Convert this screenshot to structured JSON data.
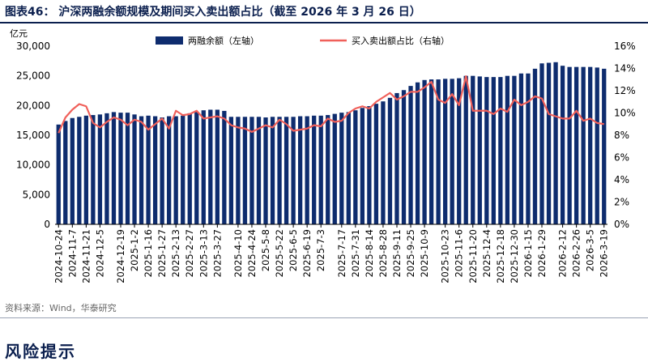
{
  "page": {
    "title": "图表46： 沪深两融余额规模及期间买入卖出额占比（截至 2026 年 3 月 26 日）",
    "source": "资料来源：Wind，华泰研究",
    "section_heading": "风险提示"
  },
  "colors": {
    "bars": "#0e2c6e",
    "line": "#f0605a",
    "title": "#0b1f4e"
  },
  "chart_data": {
    "type": "bar",
    "left_unit": "亿元",
    "left_axis": {
      "ylim": [
        0,
        30000
      ],
      "ticks": [
        "0",
        "5,000",
        "10,000",
        "15,000",
        "20,000",
        "25,000",
        "30,000"
      ]
    },
    "right_axis": {
      "ylim": [
        0,
        16
      ],
      "ticks": [
        "0%",
        "2%",
        "4%",
        "6%",
        "8%",
        "10%",
        "12%",
        "14%",
        "16%"
      ]
    },
    "legend_position": "top",
    "grid": false,
    "x_tick_labels": [
      "2024-10-24",
      "2024-11-7",
      "2024-11-21",
      "2024-12-5",
      "2024-12-19",
      "2025-1-2",
      "2025-1-16",
      "2025-1-27",
      "2025-2-13",
      "2025-2-27",
      "2025-3-13",
      "2025-3-27",
      "2025-4-10",
      "2025-4-24",
      "2025-5-8",
      "2025-5-22",
      "2025-6-5",
      "2025-6-19",
      "2025-7-3",
      "2025-7-17",
      "2025-7-31",
      "2025-8-14",
      "2025-8-28",
      "2025-9-11",
      "2025-9-25",
      "2025-10-9",
      "2025-10-23",
      "2025-11-6",
      "2025-11-20",
      "2025-12-4",
      "2025-12-18",
      "2025-12-30",
      "2026-1-15",
      "2026-1-29",
      "2026-2-12",
      "2026-2-26",
      "2026-3-5",
      "2026-3-19"
    ],
    "series": [
      {
        "name": "两融余额（左轴）",
        "type": "bar",
        "axis": "left",
        "values": [
          16800,
          17400,
          17900,
          18100,
          18300,
          18400,
          18500,
          18700,
          18900,
          18800,
          18800,
          18500,
          18200,
          18300,
          18200,
          18000,
          18200,
          18200,
          18300,
          18700,
          18900,
          19200,
          19300,
          19300,
          19100,
          18100,
          18100,
          18100,
          18100,
          18100,
          18000,
          18100,
          18100,
          18100,
          18100,
          18200,
          18200,
          18300,
          18300,
          18400,
          18600,
          18800,
          18900,
          19200,
          19600,
          19900,
          20300,
          20700,
          21300,
          22100,
          22600,
          23300,
          23900,
          24300,
          24400,
          24400,
          24500,
          24500,
          24600,
          25000,
          25000,
          24900,
          24800,
          24800,
          24800,
          25000,
          25000,
          25400,
          25400,
          26200,
          27100,
          27200,
          27300,
          26700,
          26500,
          26500,
          26500,
          26500,
          26400,
          26200
        ]
      },
      {
        "name": "买入卖出额占比（右轴）",
        "type": "line",
        "axis": "right",
        "values": [
          8.2,
          9.6,
          10.3,
          10.8,
          10.6,
          9.1,
          8.7,
          9.2,
          9.6,
          9.4,
          8.9,
          9.4,
          9.2,
          8.5,
          9.0,
          9.5,
          8.6,
          10.2,
          9.8,
          9.9,
          10.2,
          9.5,
          9.6,
          9.7,
          9.5,
          8.9,
          8.7,
          8.6,
          8.3,
          8.6,
          8.9,
          8.7,
          9.4,
          9.0,
          8.4,
          8.5,
          8.6,
          8.9,
          8.8,
          9.5,
          9.2,
          9.3,
          10.0,
          10.4,
          10.6,
          10.4,
          11.0,
          11.4,
          11.8,
          11.2,
          11.5,
          11.9,
          11.9,
          12.3,
          12.8,
          11.2,
          10.9,
          11.7,
          10.7,
          13.3,
          10.2,
          10.2,
          10.2,
          9.9,
          10.4,
          10.1,
          11.2,
          10.7,
          11.0,
          11.5,
          11.3,
          9.9,
          9.7,
          9.5,
          9.5,
          10.2,
          9.3,
          9.5,
          9.1,
          9.0
        ]
      }
    ]
  }
}
